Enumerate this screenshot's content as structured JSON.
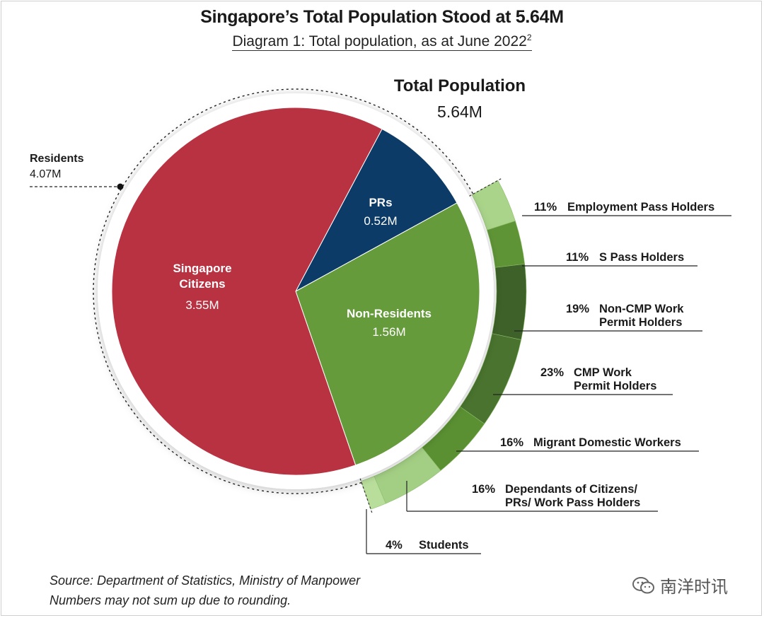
{
  "header": {
    "title": "Singapore’s Total Population Stood at 5.64M",
    "subtitle": "Diagram 1: Total population, as at June 2022",
    "subtitle_footnote": "2"
  },
  "total": {
    "label": "Total Population",
    "value": "5.64M"
  },
  "residents": {
    "label": "Residents",
    "value": "4.07M"
  },
  "chart_data": {
    "type": "pie",
    "title": "Diagram 1: Total population, as at June 2022",
    "total_label": "Total Population",
    "total": 5.64,
    "unit": "M",
    "slices": [
      {
        "label": "PRs",
        "value": 0.52,
        "value_text": "0.52M",
        "color": "#0b3b66"
      },
      {
        "label": "Non-Residents",
        "value": 1.56,
        "value_text": "1.56M",
        "color": "#659b3a"
      },
      {
        "label": "Singapore Citizens",
        "label_lines": [
          "Singapore",
          "Citizens"
        ],
        "value": 3.55,
        "value_text": "3.55M",
        "color": "#b83242"
      }
    ],
    "group": {
      "label": "Residents",
      "value": 4.07,
      "value_text": "4.07M",
      "members": [
        "Singapore Citizens",
        "PRs"
      ]
    },
    "breakdown": {
      "of": "Non-Residents",
      "items": [
        {
          "pct": 11,
          "pct_text": "11%",
          "label_lines": [
            "Employment Pass Holders"
          ],
          "color": "#a9d48a"
        },
        {
          "pct": 11,
          "pct_text": "11%",
          "label_lines": [
            "S Pass Holders"
          ],
          "color": "#5f9436"
        },
        {
          "pct": 19,
          "pct_text": "19%",
          "label_lines": [
            "Non-CMP Work",
            "Permit Holders"
          ],
          "color": "#3d6128"
        },
        {
          "pct": 23,
          "pct_text": "23%",
          "label_lines": [
            "CMP Work",
            "Permit Holders"
          ],
          "color": "#49732e"
        },
        {
          "pct": 16,
          "pct_text": "16%",
          "label_lines": [
            "Migrant Domestic Workers"
          ],
          "color": "#5a9032"
        },
        {
          "pct": 16,
          "pct_text": "16%",
          "label_lines": [
            "Dependants of Citizens/",
            "PRs/ Work Pass Holders"
          ],
          "color": "#a3cf84"
        },
        {
          "pct": 4,
          "pct_text": "4%",
          "label_lines": [
            "Students"
          ],
          "color": "#b9de9c"
        }
      ]
    }
  },
  "footer": {
    "source": "Source: Department of Statistics, Ministry of Manpower",
    "note": "Numbers may not sum up due to rounding."
  },
  "watermark": {
    "text": "南洋时讯",
    "icon": "wechat-icon"
  }
}
